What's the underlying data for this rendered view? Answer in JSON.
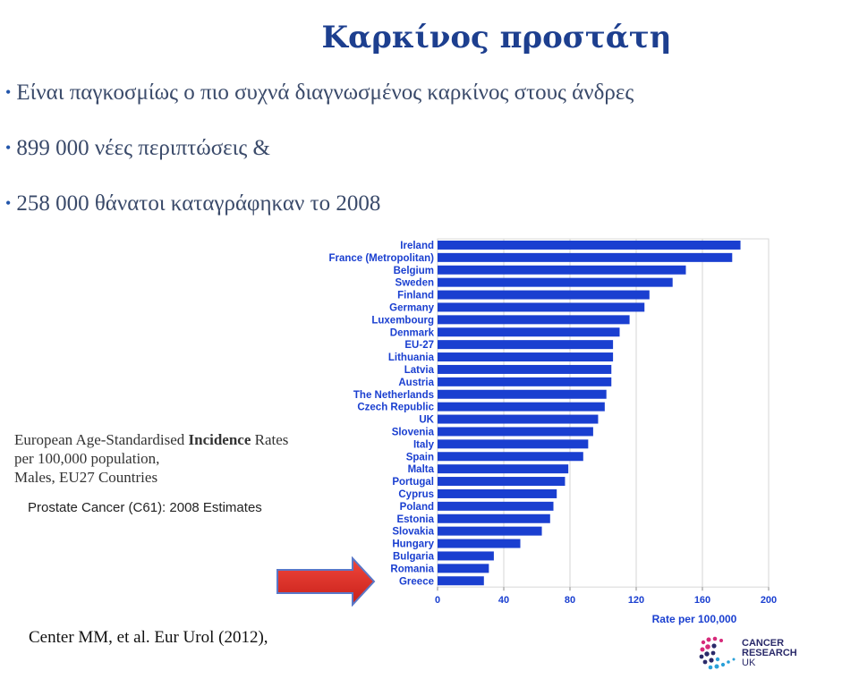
{
  "slide": {
    "title": "Καρκίνος προστάτη",
    "bullets": [
      "Είναι παγκοσμίως ο πιο συχνά διαγνωσμένος καρκίνος  στους άνδρες",
      "899 000 νέες περιπτώσεις &",
      "258 000 θάνατοι καταγράφηκαν το 2008"
    ],
    "caption": {
      "line1_pre": "European Age-Standardised ",
      "line1_bold": "Incidence",
      "line1_post": " Rates",
      "line2": "per 100,000 population,",
      "line3": "Males, EU27 Countries"
    },
    "subcaption": "Prostate Cancer (C61): 2008 Estimates",
    "citation": "Center MM, et al. Eur Urol (2012),",
    "logo": {
      "line1": "CANCER",
      "line2": "RESEARCH",
      "line3": "UK"
    },
    "colors": {
      "title": "#1d3f8f",
      "bar": "#1a3fd0",
      "arrow": "#e8322a"
    }
  },
  "chart_data": {
    "type": "bar",
    "orientation": "horizontal",
    "xlabel": "Rate per 100,000",
    "xlim": [
      0,
      200
    ],
    "xticks": [
      0,
      40,
      80,
      120,
      160,
      200
    ],
    "grid": true,
    "categories": [
      "Ireland",
      "France (Metropolitan)",
      "Belgium",
      "Sweden",
      "Finland",
      "Germany",
      "Luxembourg",
      "Denmark",
      "EU-27",
      "Lithuania",
      "Latvia",
      "Austria",
      "The Netherlands",
      "Czech Republic",
      "UK",
      "Slovenia",
      "Italy",
      "Spain",
      "Malta",
      "Portugal",
      "Cyprus",
      "Poland",
      "Estonia",
      "Slovakia",
      "Hungary",
      "Bulgaria",
      "Romania",
      "Greece"
    ],
    "values": [
      183,
      178,
      150,
      142,
      128,
      125,
      116,
      110,
      106,
      106,
      105,
      105,
      102,
      101,
      97,
      94,
      91,
      88,
      79,
      77,
      72,
      70,
      68,
      63,
      50,
      34,
      31,
      28
    ]
  }
}
